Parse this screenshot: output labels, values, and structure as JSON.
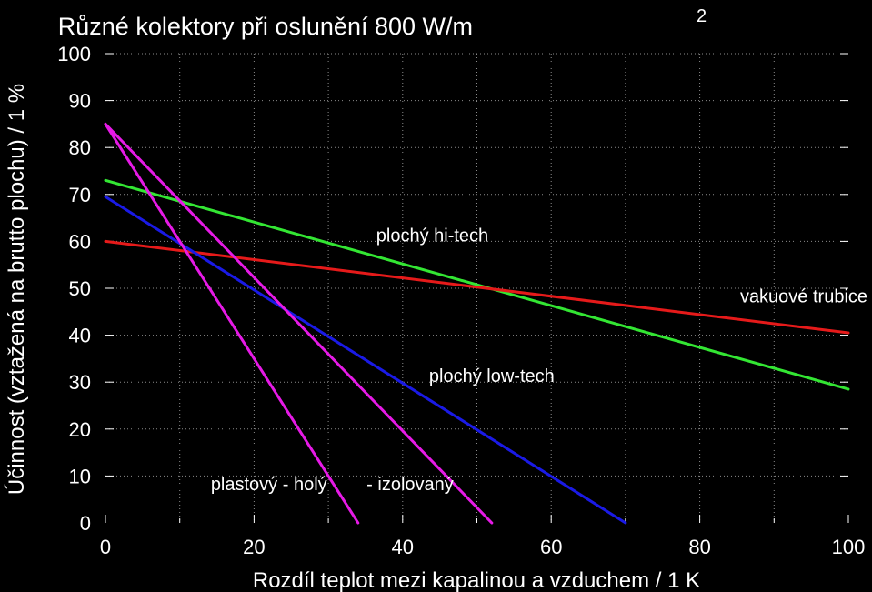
{
  "chart_data": {
    "type": "line",
    "title": "Různé kolektory při oslunění 800 W/m",
    "title_superscript": "2",
    "xlabel": "Rozdíl teplot mezi kapalinou a vzduchem / 1 K",
    "ylabel": "Účinnost (vztažená na brutto plochu) / 1 %",
    "xlim": [
      0,
      100
    ],
    "ylim": [
      0,
      100
    ],
    "x_ticks": [
      "0",
      "20",
      "40",
      "60",
      "80",
      "100"
    ],
    "y_ticks": [
      "0",
      "10",
      "20",
      "30",
      "40",
      "50",
      "60",
      "70",
      "80",
      "90",
      "100"
    ],
    "grid": true,
    "background": "#000000",
    "series": [
      {
        "x": [
          0,
          100
        ],
        "y": [
          73,
          28.5
        ],
        "color": "#33e633"
      },
      {
        "x": [
          0,
          100
        ],
        "y": [
          60,
          40.5
        ],
        "color": "#e61a1a"
      },
      {
        "x": [
          0,
          70
        ],
        "y": [
          69.5,
          0
        ],
        "color": "#1a1ae6"
      },
      {
        "x": [
          0,
          52
        ],
        "y": [
          85,
          0
        ],
        "color": "#e61ae6"
      },
      {
        "x": [
          0,
          34
        ],
        "y": [
          85,
          0
        ],
        "color": "#e61ae6"
      }
    ],
    "annotations": [
      {
        "text": "plochý hi-tech",
        "x": 44,
        "y": 60
      },
      {
        "text": "vakuové trubice",
        "x": 94,
        "y": 47
      },
      {
        "text": "plochý low-tech",
        "x": 52,
        "y": 30
      },
      {
        "text": "plastový - holý",
        "x": 22,
        "y": 7
      },
      {
        "text": "- izolovaný",
        "x": 41,
        "y": 7
      }
    ]
  }
}
